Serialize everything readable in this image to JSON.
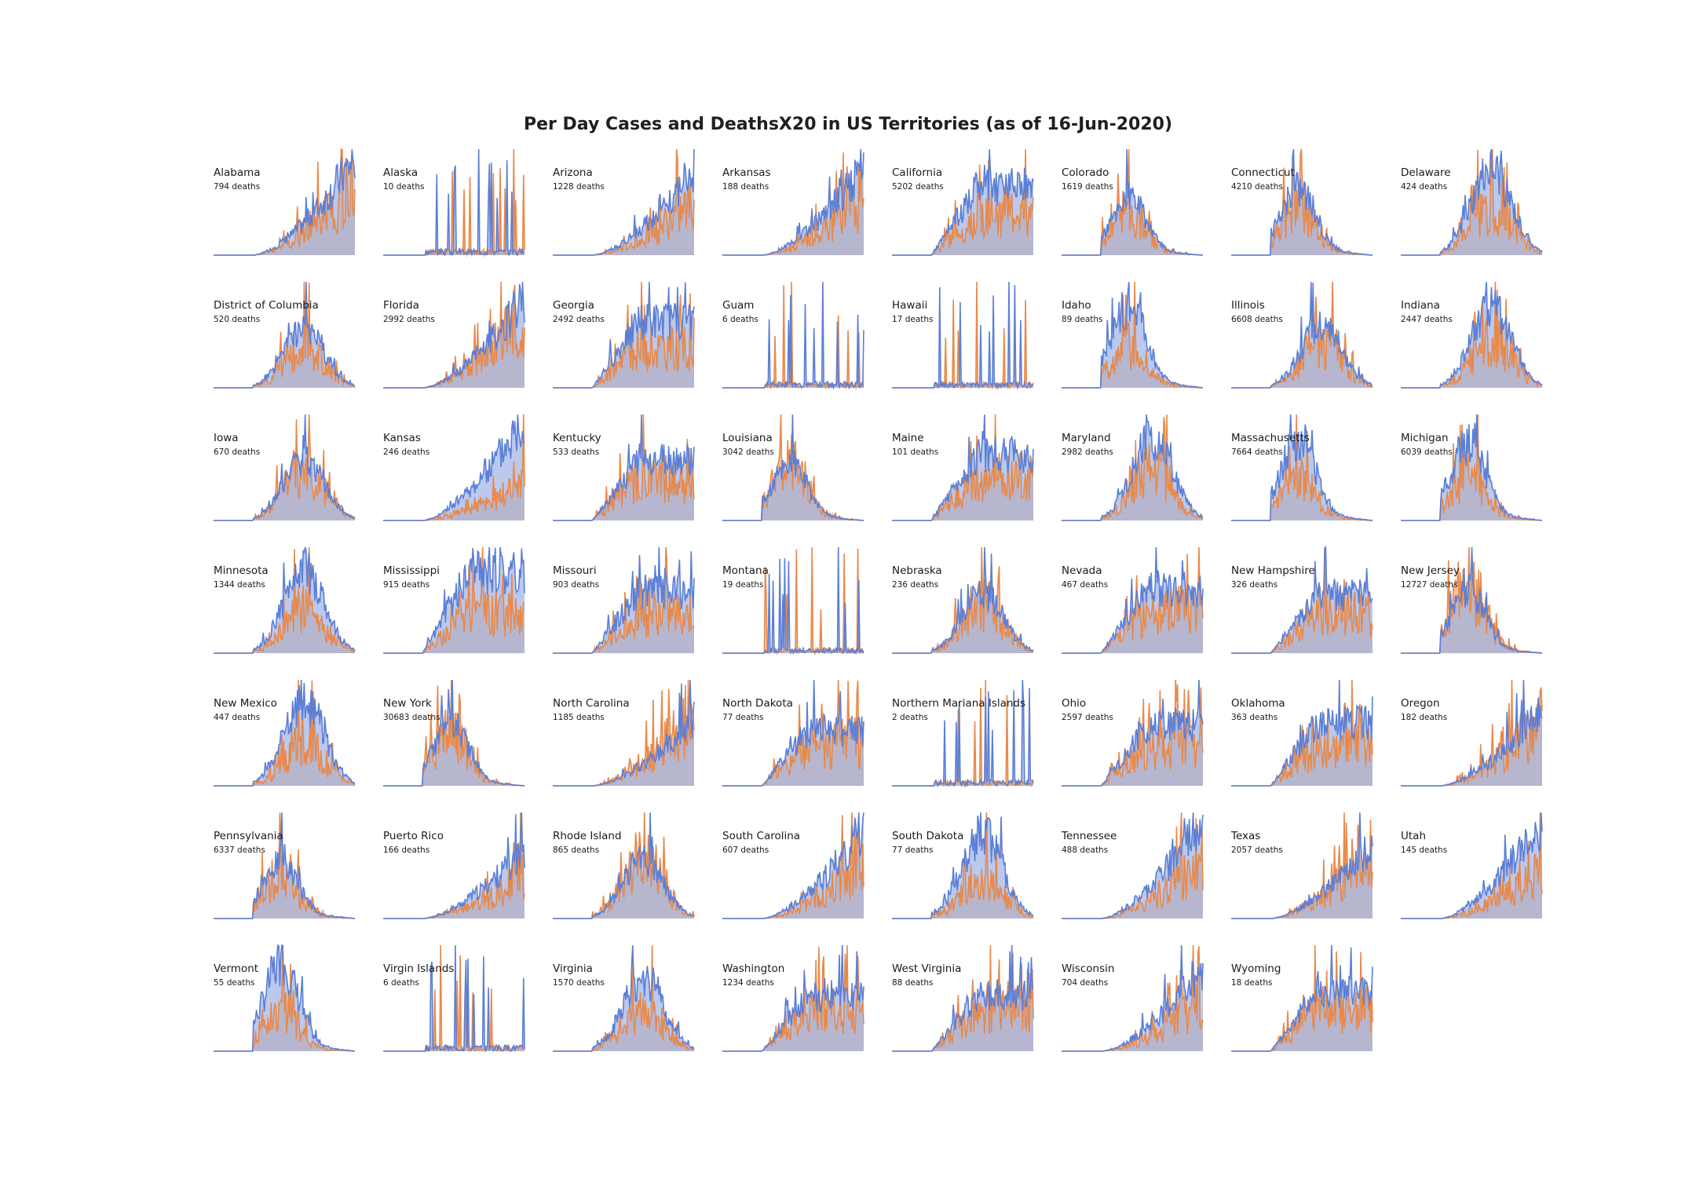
{
  "chart_data": {
    "type": "area",
    "title": "Per Day Cases and DeathsX20 in US Territories (as of 16-Jun-2020)",
    "layout": "small-multiples",
    "grid": false,
    "axes_visible": false,
    "colors": {
      "cases": "#5b7fd6",
      "cases_fill": "#9cb2e6",
      "deaths": "#e8894a",
      "deaths_fill": "#f2b48a",
      "overlap": "#c2958d"
    },
    "x_start": "2020-01-22",
    "x_end": "2020-06-16",
    "y_scale": "each panel scaled to its own maximum",
    "series": [
      "cases",
      "deaths x20"
    ],
    "panels": [
      {
        "name": "Alabama",
        "deaths_label": "794 deaths",
        "peak": 0.95,
        "shape": "rise",
        "seed": 1
      },
      {
        "name": "Alaska",
        "deaths_label": "10 deaths",
        "peak": 0.9,
        "shape": "spiky",
        "seed": 2
      },
      {
        "name": "Arizona",
        "deaths_label": "1228 deaths",
        "peak": 1.0,
        "shape": "rise",
        "seed": 3
      },
      {
        "name": "Arkansas",
        "deaths_label": "188 deaths",
        "peak": 1.0,
        "shape": "rise",
        "seed": 4
      },
      {
        "name": "California",
        "deaths_label": "5202 deaths",
        "peak": 1.0,
        "shape": "plateau",
        "seed": 5
      },
      {
        "name": "Colorado",
        "deaths_label": "1619 deaths",
        "peak": 1.0,
        "shape": "earlypeak",
        "seed": 6
      },
      {
        "name": "Connecticut",
        "deaths_label": "4210 deaths",
        "peak": 1.0,
        "shape": "earlypeak",
        "seed": 7
      },
      {
        "name": "Delaware",
        "deaths_label": "424 deaths",
        "peak": 1.0,
        "shape": "midpeak",
        "seed": 8
      },
      {
        "name": "District of Columbia",
        "deaths_label": "520 deaths",
        "peak": 1.0,
        "shape": "midpeak",
        "seed": 9
      },
      {
        "name": "Florida",
        "deaths_label": "2992 deaths",
        "peak": 1.0,
        "shape": "rise",
        "seed": 10
      },
      {
        "name": "Georgia",
        "deaths_label": "2492 deaths",
        "peak": 1.0,
        "shape": "plateau",
        "seed": 11
      },
      {
        "name": "Guam",
        "deaths_label": "6 deaths",
        "peak": 1.0,
        "shape": "spiky",
        "seed": 12
      },
      {
        "name": "Hawaii",
        "deaths_label": "17 deaths",
        "peak": 1.0,
        "shape": "spiky",
        "seed": 13
      },
      {
        "name": "Idaho",
        "deaths_label": "89 deaths",
        "peak": 1.0,
        "shape": "earlypeak",
        "seed": 14
      },
      {
        "name": "Illinois",
        "deaths_label": "6608 deaths",
        "peak": 1.0,
        "shape": "midpeak",
        "seed": 15
      },
      {
        "name": "Indiana",
        "deaths_label": "2447 deaths",
        "peak": 1.0,
        "shape": "midpeak",
        "seed": 16
      },
      {
        "name": "Iowa",
        "deaths_label": "670 deaths",
        "peak": 1.0,
        "shape": "midpeak",
        "seed": 17
      },
      {
        "name": "Kansas",
        "deaths_label": "246 deaths",
        "peak": 1.0,
        "shape": "rise",
        "seed": 18
      },
      {
        "name": "Kentucky",
        "deaths_label": "533 deaths",
        "peak": 1.0,
        "shape": "plateau",
        "seed": 19
      },
      {
        "name": "Louisiana",
        "deaths_label": "3042 deaths",
        "peak": 1.0,
        "shape": "earlypeak",
        "seed": 20
      },
      {
        "name": "Maine",
        "deaths_label": "101 deaths",
        "peak": 1.0,
        "shape": "plateau",
        "seed": 21
      },
      {
        "name": "Maryland",
        "deaths_label": "2982 deaths",
        "peak": 1.0,
        "shape": "midpeak",
        "seed": 22
      },
      {
        "name": "Massachusetts",
        "deaths_label": "7664 deaths",
        "peak": 1.0,
        "shape": "earlypeak",
        "seed": 23
      },
      {
        "name": "Michigan",
        "deaths_label": "6039 deaths",
        "peak": 1.0,
        "shape": "earlypeak",
        "seed": 24
      },
      {
        "name": "Minnesota",
        "deaths_label": "1344 deaths",
        "peak": 1.0,
        "shape": "midpeak",
        "seed": 25
      },
      {
        "name": "Mississippi",
        "deaths_label": "915 deaths",
        "peak": 1.0,
        "shape": "plateau",
        "seed": 26
      },
      {
        "name": "Missouri",
        "deaths_label": "903 deaths",
        "peak": 1.0,
        "shape": "plateau",
        "seed": 27
      },
      {
        "name": "Montana",
        "deaths_label": "19 deaths",
        "peak": 1.0,
        "shape": "spiky",
        "seed": 28
      },
      {
        "name": "Nebraska",
        "deaths_label": "236 deaths",
        "peak": 1.0,
        "shape": "midpeak",
        "seed": 29
      },
      {
        "name": "Nevada",
        "deaths_label": "467 deaths",
        "peak": 1.0,
        "shape": "plateau",
        "seed": 30
      },
      {
        "name": "New Hampshire",
        "deaths_label": "326 deaths",
        "peak": 1.0,
        "shape": "plateau",
        "seed": 31
      },
      {
        "name": "New Jersey",
        "deaths_label": "12727 deaths",
        "peak": 1.0,
        "shape": "earlypeak",
        "seed": 32
      },
      {
        "name": "New Mexico",
        "deaths_label": "447 deaths",
        "peak": 1.0,
        "shape": "midpeak",
        "seed": 33
      },
      {
        "name": "New York",
        "deaths_label": "30683 deaths",
        "peak": 1.0,
        "shape": "earlypeak",
        "seed": 34
      },
      {
        "name": "North Carolina",
        "deaths_label": "1185 deaths",
        "peak": 1.0,
        "shape": "rise",
        "seed": 35
      },
      {
        "name": "North Dakota",
        "deaths_label": "77 deaths",
        "peak": 1.0,
        "shape": "plateau",
        "seed": 36
      },
      {
        "name": "Northern Mariana Islands",
        "deaths_label": "2 deaths",
        "peak": 1.0,
        "shape": "spiky",
        "seed": 37
      },
      {
        "name": "Ohio",
        "deaths_label": "2597 deaths",
        "peak": 1.0,
        "shape": "plateau",
        "seed": 38
      },
      {
        "name": "Oklahoma",
        "deaths_label": "363 deaths",
        "peak": 1.0,
        "shape": "plateau",
        "seed": 39
      },
      {
        "name": "Oregon",
        "deaths_label": "182 deaths",
        "peak": 1.0,
        "shape": "rise",
        "seed": 40
      },
      {
        "name": "Pennsylvania",
        "deaths_label": "6337 deaths",
        "peak": 1.0,
        "shape": "earlypeak",
        "seed": 41
      },
      {
        "name": "Puerto Rico",
        "deaths_label": "166 deaths",
        "peak": 1.0,
        "shape": "rise",
        "seed": 42
      },
      {
        "name": "Rhode Island",
        "deaths_label": "865 deaths",
        "peak": 1.0,
        "shape": "midpeak",
        "seed": 43
      },
      {
        "name": "South Carolina",
        "deaths_label": "607 deaths",
        "peak": 1.0,
        "shape": "rise",
        "seed": 44
      },
      {
        "name": "South Dakota",
        "deaths_label": "77 deaths",
        "peak": 1.0,
        "shape": "midpeak",
        "seed": 45
      },
      {
        "name": "Tennessee",
        "deaths_label": "488 deaths",
        "peak": 1.0,
        "shape": "rise",
        "seed": 46
      },
      {
        "name": "Texas",
        "deaths_label": "2057 deaths",
        "peak": 1.0,
        "shape": "rise",
        "seed": 47
      },
      {
        "name": "Utah",
        "deaths_label": "145 deaths",
        "peak": 1.0,
        "shape": "rise",
        "seed": 48
      },
      {
        "name": "Vermont",
        "deaths_label": "55 deaths",
        "peak": 1.0,
        "shape": "earlypeak",
        "seed": 49
      },
      {
        "name": "Virgin Islands",
        "deaths_label": "6 deaths",
        "peak": 1.0,
        "shape": "spiky",
        "seed": 50
      },
      {
        "name": "Virginia",
        "deaths_label": "1570 deaths",
        "peak": 1.0,
        "shape": "midpeak",
        "seed": 51
      },
      {
        "name": "Washington",
        "deaths_label": "1234 deaths",
        "peak": 1.0,
        "shape": "plateau",
        "seed": 52
      },
      {
        "name": "West Virginia",
        "deaths_label": "88 deaths",
        "peak": 1.0,
        "shape": "plateau",
        "seed": 53
      },
      {
        "name": "Wisconsin",
        "deaths_label": "704 deaths",
        "peak": 1.0,
        "shape": "rise",
        "seed": 54
      },
      {
        "name": "Wyoming",
        "deaths_label": "18 deaths",
        "peak": 1.0,
        "shape": "plateau",
        "seed": 55
      }
    ]
  }
}
